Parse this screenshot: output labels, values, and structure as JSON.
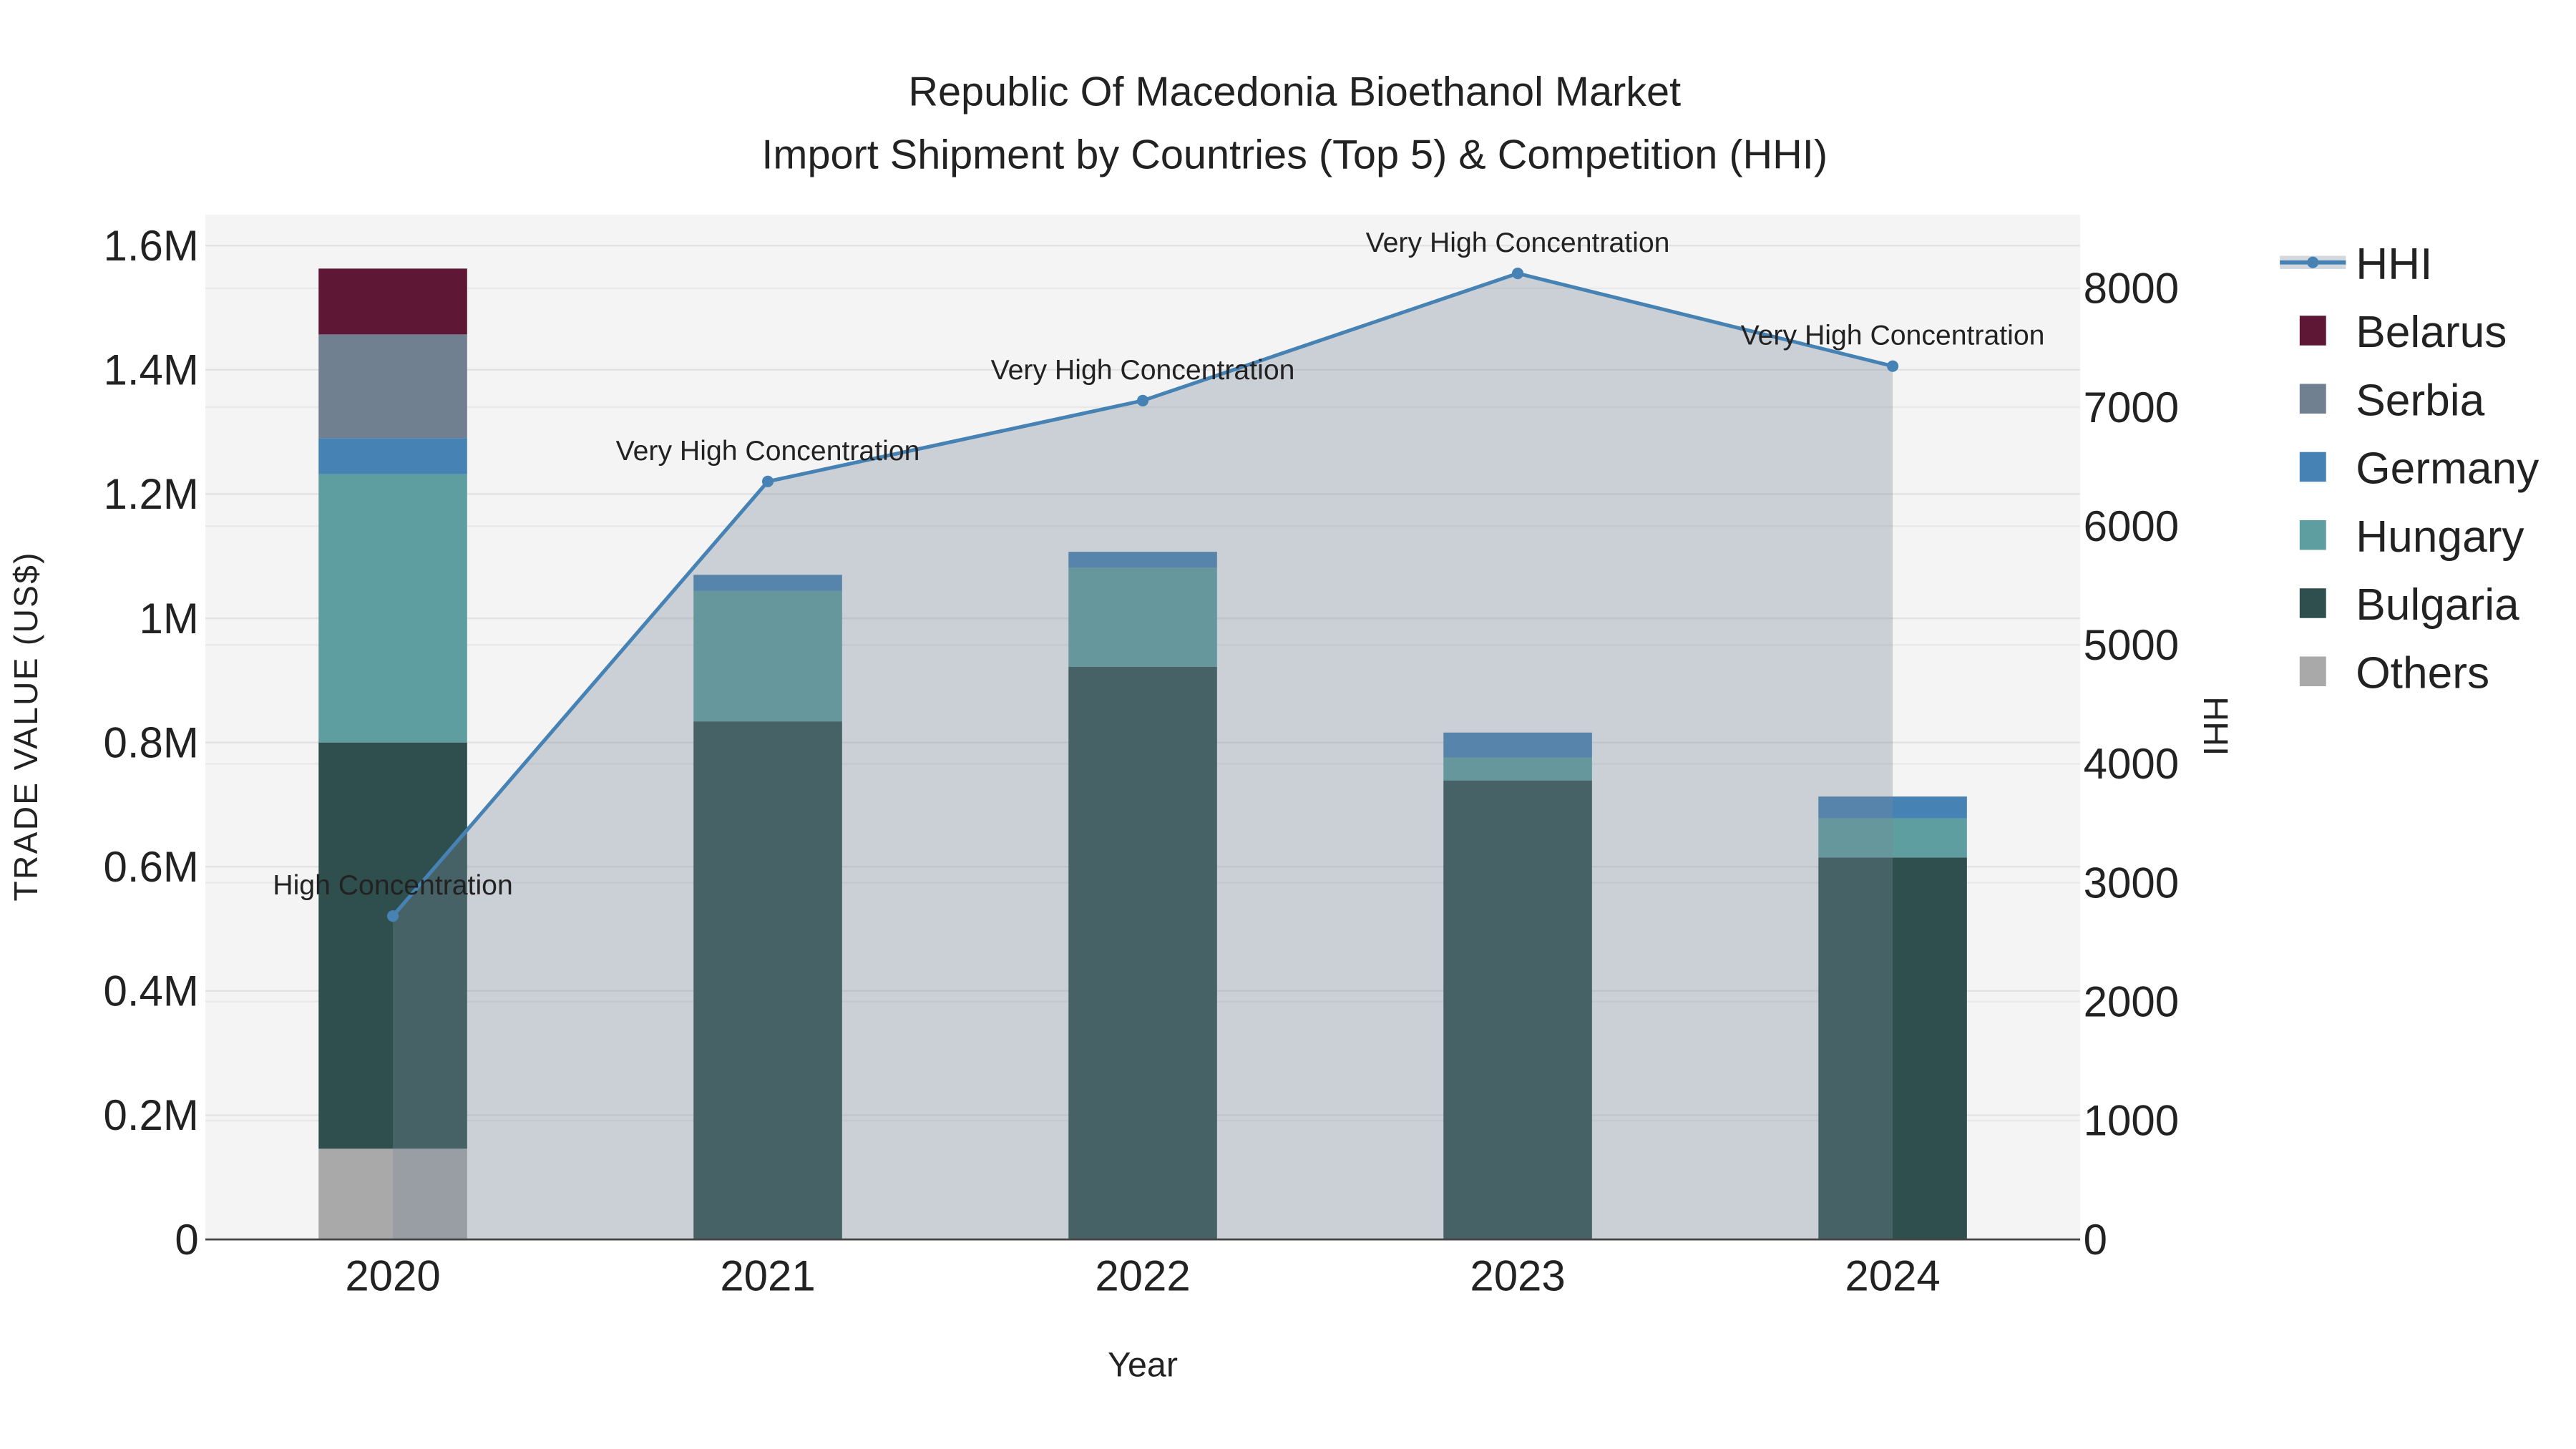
{
  "chart_data": {
    "type": "bar",
    "title_line1": "Republic Of Macedonia Bioethanol Market",
    "title_line2": "Import Shipment by Countries (Top 5) & Competition (HHI)",
    "xlabel": "Year",
    "ylabel": "TRADE VALUE (US$)",
    "y2label": "HHI",
    "categories": [
      "2020",
      "2021",
      "2022",
      "2023",
      "2024"
    ],
    "ylim": [
      0,
      1650000
    ],
    "y2lim": [
      0,
      8620
    ],
    "yticks": [
      0,
      200000,
      400000,
      600000,
      800000,
      1000000,
      1200000,
      1400000,
      1600000
    ],
    "ytick_labels": [
      "0",
      "0.2M",
      "0.4M",
      "0.6M",
      "0.8M",
      "1M",
      "1.2M",
      "1.4M",
      "1.6M"
    ],
    "y2ticks": [
      0,
      1000,
      2000,
      3000,
      4000,
      5000,
      6000,
      7000,
      8000
    ],
    "y2tick_labels": [
      "0",
      "1000",
      "2000",
      "3000",
      "4000",
      "5000",
      "6000",
      "7000",
      "8000"
    ],
    "grid": true,
    "legend_placement": "right",
    "series": [
      {
        "name": "Others",
        "color": "#a9a9a9",
        "values": [
          146000,
          0,
          0,
          0,
          0
        ]
      },
      {
        "name": "Bulgaria",
        "color": "#2f4f4f",
        "values": [
          654000,
          834000,
          922000,
          739000,
          615000
        ]
      },
      {
        "name": "Hungary",
        "color": "#5f9ea0",
        "values": [
          432000,
          210000,
          159000,
          37000,
          63000
        ]
      },
      {
        "name": "Germany",
        "color": "#4682b4",
        "values": [
          58000,
          26000,
          26000,
          40000,
          35000
        ]
      },
      {
        "name": "Serbia",
        "color": "#708090",
        "values": [
          167000,
          0,
          0,
          0,
          0
        ]
      },
      {
        "name": "Belarus",
        "color": "#5f1736",
        "values": [
          106000,
          0,
          0,
          0,
          0
        ]
      }
    ],
    "hhi": {
      "name": "HHI",
      "color": "#4682b4",
      "values": [
        2720,
        6375,
        7055,
        8125,
        7345
      ],
      "annotations": [
        "High Concentration",
        "Very High Concentration",
        "Very High Concentration",
        "Very High Concentration",
        "Very High Concentration"
      ]
    },
    "legend_order": [
      "HHI",
      "Belarus",
      "Serbia",
      "Germany",
      "Hungary",
      "Bulgaria",
      "Others"
    ]
  }
}
